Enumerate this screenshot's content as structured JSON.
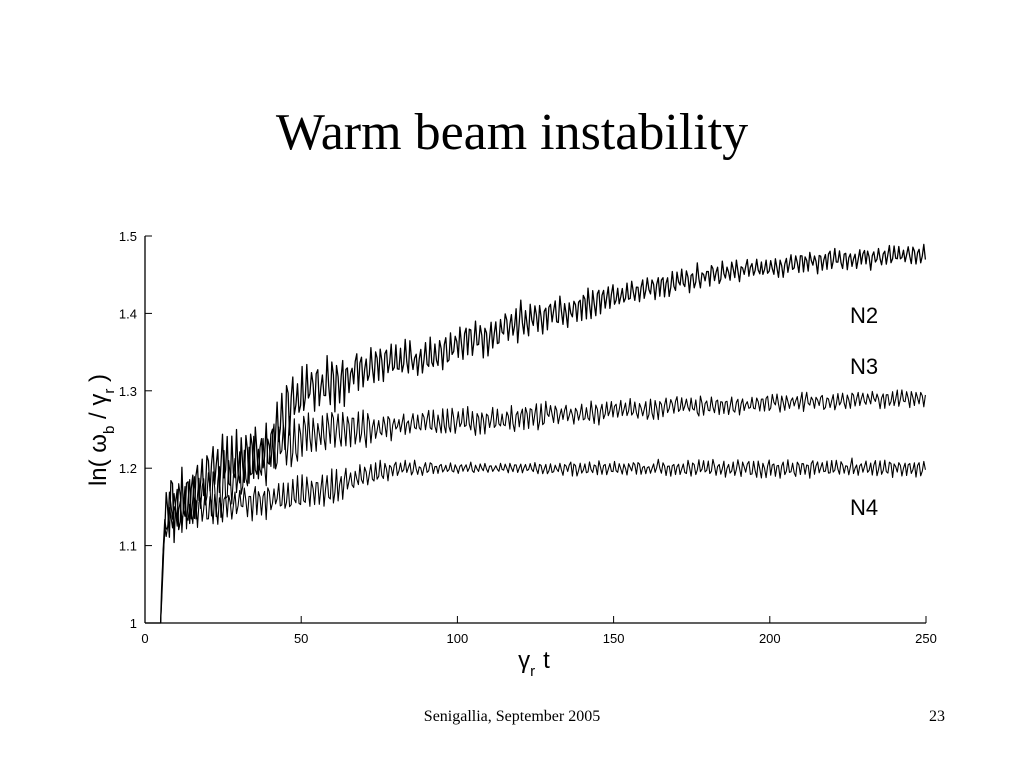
{
  "slide": {
    "title": "Warm beam instability"
  },
  "footer": {
    "venue": "Senigallia, September 2005",
    "page": "23"
  },
  "chart_data": {
    "type": "line",
    "xlabel": "γr t",
    "ylabel": "ln( ωb / γr )",
    "xlim": [
      0,
      250
    ],
    "ylim": [
      1,
      1.5
    ],
    "xticks": [
      0,
      50,
      100,
      150,
      200,
      250
    ],
    "yticks": [
      1,
      1.1,
      1.2,
      1.3,
      1.4,
      1.5
    ],
    "line_color": "#000000",
    "grid": false,
    "legend": "inline labels at right",
    "series": [
      {
        "name": "N2",
        "x": [
          0,
          5,
          6,
          8,
          10,
          15,
          20,
          25,
          30,
          35,
          40,
          45,
          50,
          60,
          70,
          80,
          90,
          100,
          110,
          120,
          130,
          140,
          150,
          160,
          170,
          180,
          190,
          200,
          210,
          220,
          230,
          240,
          250
        ],
        "values": [
          1,
          1,
          1.12,
          1.16,
          1.15,
          1.17,
          1.19,
          1.2,
          1.21,
          1.22,
          1.23,
          1.27,
          1.3,
          1.31,
          1.33,
          1.34,
          1.34,
          1.36,
          1.37,
          1.39,
          1.4,
          1.41,
          1.42,
          1.43,
          1.44,
          1.45,
          1.455,
          1.46,
          1.465,
          1.47,
          1.47,
          1.475,
          1.475
        ],
        "oscillation_amplitude": [
          0,
          0,
          0.03,
          0.04,
          0.04,
          0.04,
          0.035,
          0.035,
          0.035,
          0.035,
          0.035,
          0.035,
          0.03,
          0.03,
          0.025,
          0.02,
          0.02,
          0.02,
          0.02,
          0.02,
          0.02,
          0.02,
          0.015,
          0.015,
          0.015,
          0.015,
          0.012,
          0.012,
          0.012,
          0.012,
          0.012,
          0.012,
          0.012
        ]
      },
      {
        "name": "N3",
        "x": [
          0,
          5,
          6,
          8,
          10,
          20,
          30,
          40,
          50,
          60,
          70,
          80,
          90,
          100,
          110,
          120,
          130,
          140,
          150,
          160,
          170,
          180,
          190,
          200,
          210,
          220,
          230,
          240,
          250
        ],
        "values": [
          1,
          1,
          1.1,
          1.15,
          1.15,
          1.17,
          1.19,
          1.22,
          1.24,
          1.25,
          1.25,
          1.255,
          1.26,
          1.26,
          1.26,
          1.265,
          1.27,
          1.27,
          1.275,
          1.275,
          1.28,
          1.28,
          1.28,
          1.285,
          1.285,
          1.285,
          1.29,
          1.29,
          1.29
        ],
        "oscillation_amplitude": [
          0,
          0,
          0.02,
          0.03,
          0.03,
          0.03,
          0.035,
          0.035,
          0.03,
          0.025,
          0.02,
          0.015,
          0.015,
          0.015,
          0.015,
          0.015,
          0.015,
          0.012,
          0.012,
          0.012,
          0.012,
          0.012,
          0.01,
          0.01,
          0.01,
          0.01,
          0.01,
          0.01,
          0.01
        ]
      },
      {
        "name": "N4",
        "x": [
          0,
          5,
          6,
          8,
          10,
          20,
          30,
          40,
          50,
          60,
          70,
          80,
          90,
          100,
          110,
          120,
          130,
          140,
          150,
          160,
          170,
          180,
          190,
          200,
          210,
          220,
          230,
          240,
          250
        ],
        "values": [
          1,
          1,
          1.12,
          1.14,
          1.14,
          1.15,
          1.155,
          1.16,
          1.165,
          1.175,
          1.19,
          1.2,
          1.2,
          1.2,
          1.2,
          1.2,
          1.2,
          1.2,
          1.2,
          1.2,
          1.2,
          1.2,
          1.2,
          1.2,
          1.2,
          1.2,
          1.2,
          1.2,
          1.2
        ],
        "oscillation_amplitude": [
          0,
          0,
          0.015,
          0.015,
          0.015,
          0.02,
          0.02,
          0.02,
          0.02,
          0.02,
          0.015,
          0.01,
          0.008,
          0.006,
          0.006,
          0.006,
          0.006,
          0.008,
          0.008,
          0.008,
          0.008,
          0.01,
          0.01,
          0.01,
          0.01,
          0.01,
          0.01,
          0.01,
          0.01
        ]
      }
    ]
  }
}
